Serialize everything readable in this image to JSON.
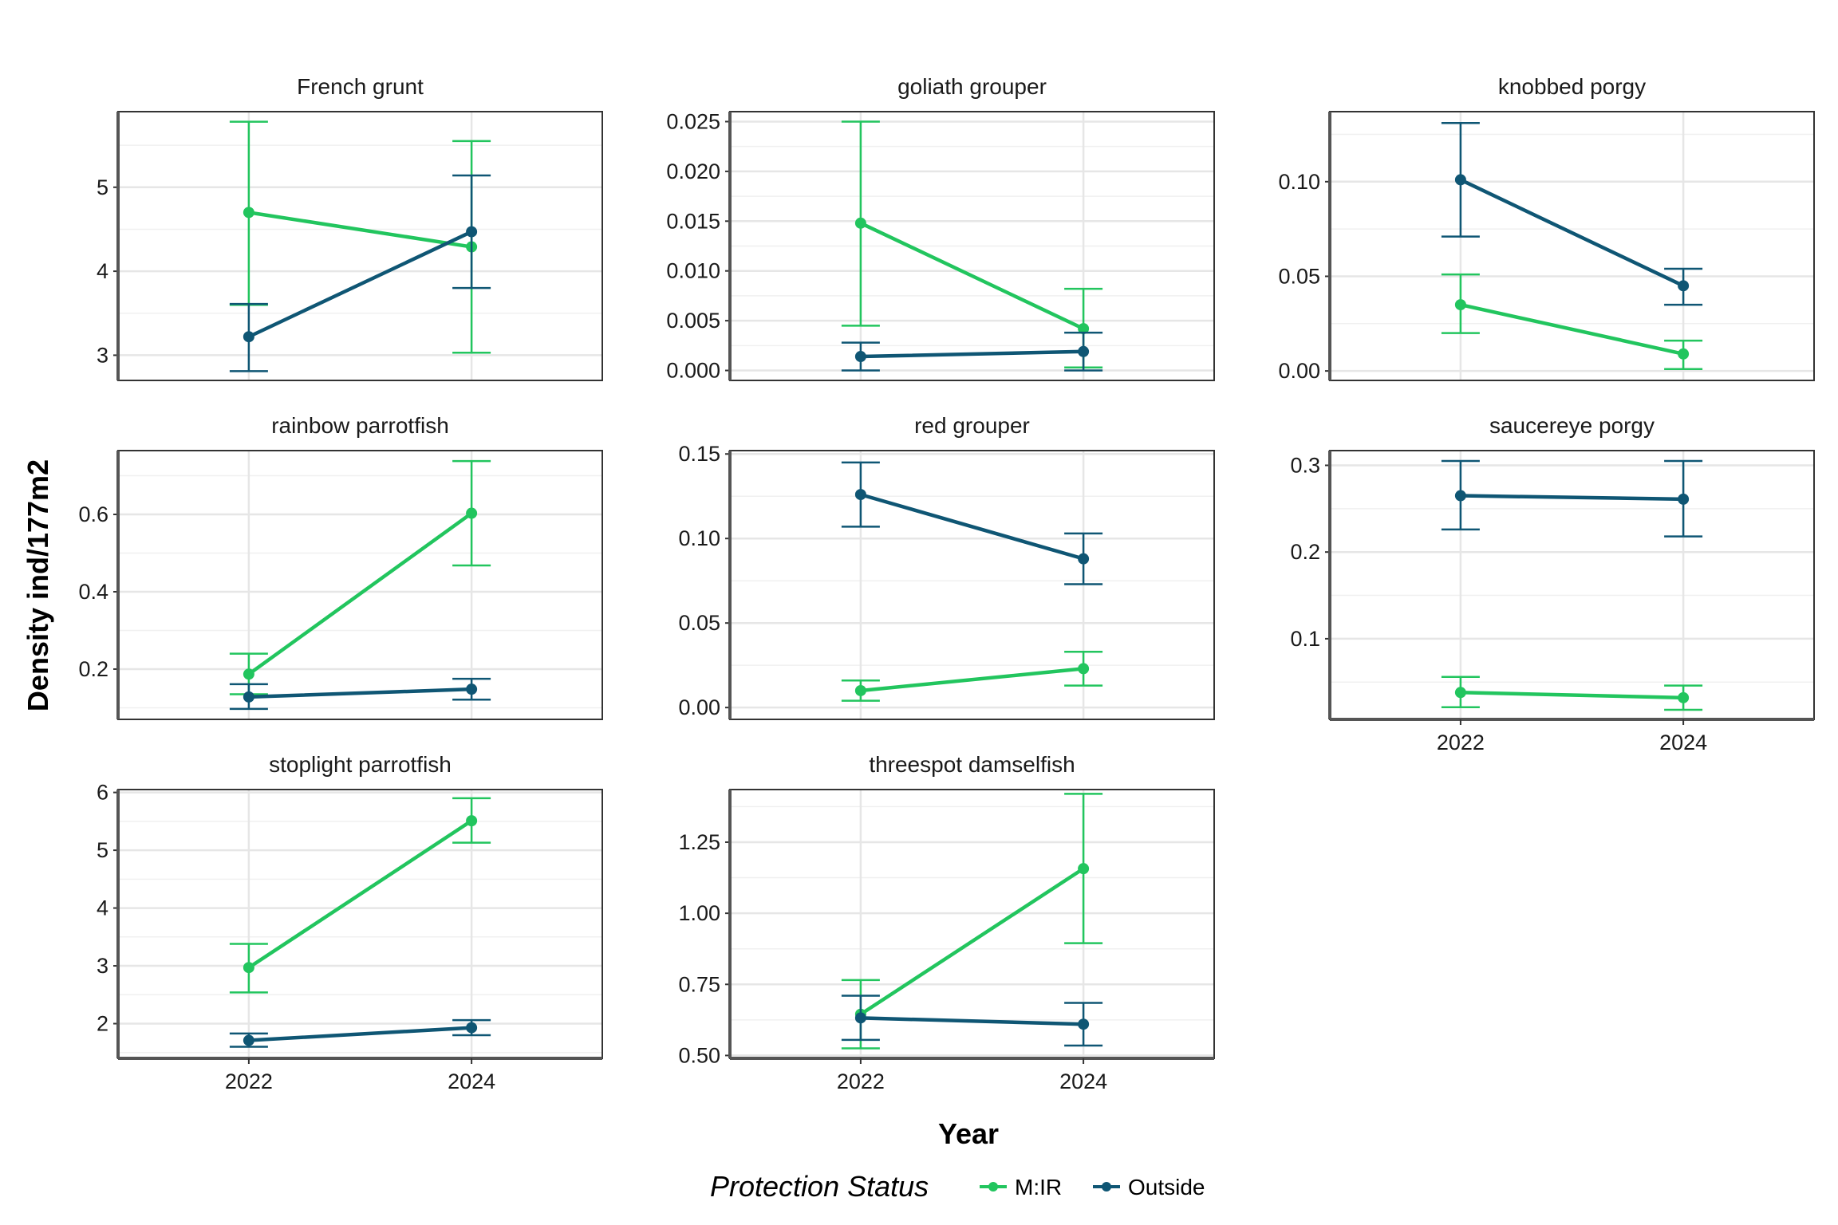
{
  "axes": {
    "xlabel": "Year",
    "ylabel": "Density ind/177m2"
  },
  "legend": {
    "title": "Protection Status",
    "items": [
      {
        "label": "M:IR",
        "color": "#22c55e"
      },
      {
        "label": "Outside",
        "color": "#0f5674"
      }
    ]
  },
  "chart_data": {
    "type": "line",
    "layout": "facet-wrap 3 columns, free y scales, error bars",
    "x_categories": [
      "2022",
      "2024"
    ],
    "xlabel": "Year",
    "ylabel": "Density ind/177m2",
    "legend_title": "Protection Status",
    "legend_placement": "bottom",
    "grid": true,
    "series_colors": {
      "M:IR": "#22c55e",
      "Outside": "#0f5674"
    },
    "panels": [
      {
        "title": "French grunt",
        "ylim": [
          2.7,
          5.9
        ],
        "yticks": [
          3,
          4,
          5
        ],
        "ytick_labels": [
          "3",
          "4",
          "5"
        ],
        "series": [
          {
            "name": "M:IR",
            "values": [
              4.7,
              4.29
            ],
            "lower": [
              3.6,
              3.03
            ],
            "upper": [
              5.78,
              5.55
            ]
          },
          {
            "name": "Outside",
            "values": [
              3.22,
              4.47
            ],
            "lower": [
              2.81,
              3.8
            ],
            "upper": [
              3.61,
              5.14
            ]
          }
        ]
      },
      {
        "title": "goliath grouper",
        "ylim": [
          -0.001,
          0.026
        ],
        "yticks": [
          0,
          0.005,
          0.01,
          0.015,
          0.02,
          0.025
        ],
        "ytick_labels": [
          "0.000",
          "0.005",
          "0.010",
          "0.015",
          "0.020",
          "0.025"
        ],
        "series": [
          {
            "name": "M:IR",
            "values": [
              0.0148,
              0.0042
            ],
            "lower": [
              0.0045,
              0.0003
            ],
            "upper": [
              0.025,
              0.0082
            ]
          },
          {
            "name": "Outside",
            "values": [
              0.0014,
              0.0019
            ],
            "lower": [
              0.0,
              0.0
            ],
            "upper": [
              0.0028,
              0.0038
            ]
          }
        ]
      },
      {
        "title": "knobbed porgy",
        "ylim": [
          -0.005,
          0.137
        ],
        "yticks": [
          0,
          0.05,
          0.1
        ],
        "ytick_labels": [
          "0.00",
          "0.05",
          "0.10"
        ],
        "series": [
          {
            "name": "M:IR",
            "values": [
              0.035,
              0.009
            ],
            "lower": [
              0.02,
              0.001
            ],
            "upper": [
              0.051,
              0.016
            ]
          },
          {
            "name": "Outside",
            "values": [
              0.101,
              0.045
            ],
            "lower": [
              0.071,
              0.035
            ],
            "upper": [
              0.131,
              0.054
            ]
          }
        ]
      },
      {
        "title": "rainbow parrotfish",
        "ylim": [
          0.07,
          0.765
        ],
        "yticks": [
          0.2,
          0.4,
          0.6
        ],
        "ytick_labels": [
          "0.2",
          "0.4",
          "0.6"
        ],
        "series": [
          {
            "name": "M:IR",
            "values": [
              0.187,
              0.603
            ],
            "lower": [
              0.135,
              0.468
            ],
            "upper": [
              0.24,
              0.738
            ]
          },
          {
            "name": "Outside",
            "values": [
              0.128,
              0.148
            ],
            "lower": [
              0.097,
              0.121
            ],
            "upper": [
              0.161,
              0.175
            ]
          }
        ]
      },
      {
        "title": "red grouper",
        "ylim": [
          -0.007,
          0.152
        ],
        "yticks": [
          0,
          0.05,
          0.1,
          0.15
        ],
        "ytick_labels": [
          "0.00",
          "0.05",
          "0.10",
          "0.15"
        ],
        "series": [
          {
            "name": "M:IR",
            "values": [
              0.01,
              0.023
            ],
            "lower": [
              0.004,
              0.013
            ],
            "upper": [
              0.016,
              0.033
            ]
          },
          {
            "name": "Outside",
            "values": [
              0.126,
              0.088
            ],
            "lower": [
              0.107,
              0.073
            ],
            "upper": [
              0.145,
              0.103
            ]
          }
        ]
      },
      {
        "title": "saucereye porgy",
        "ylim": [
          0.007,
          0.317
        ],
        "yticks": [
          0.1,
          0.2,
          0.3
        ],
        "ytick_labels": [
          "0.1",
          "0.2",
          "0.3"
        ],
        "series": [
          {
            "name": "M:IR",
            "values": [
              0.038,
              0.032
            ],
            "lower": [
              0.021,
              0.018
            ],
            "upper": [
              0.056,
              0.046
            ]
          },
          {
            "name": "Outside",
            "values": [
              0.265,
              0.261
            ],
            "lower": [
              0.226,
              0.218
            ],
            "upper": [
              0.305,
              0.305
            ]
          }
        ]
      },
      {
        "title": "stoplight parrotfish",
        "ylim": [
          1.4,
          6.05
        ],
        "yticks": [
          2,
          3,
          4,
          5,
          6
        ],
        "ytick_labels": [
          "2",
          "3",
          "4",
          "5",
          "6"
        ],
        "series": [
          {
            "name": "M:IR",
            "values": [
              2.97,
              5.51
            ],
            "lower": [
              2.54,
              5.13
            ],
            "upper": [
              3.38,
              5.9
            ]
          },
          {
            "name": "Outside",
            "values": [
              1.71,
              1.93
            ],
            "lower": [
              1.6,
              1.8
            ],
            "upper": [
              1.83,
              2.06
            ]
          }
        ]
      },
      {
        "title": "threespot damselfish",
        "ylim": [
          0.49,
          1.435
        ],
        "yticks": [
          0.5,
          0.75,
          1.0,
          1.25
        ],
        "ytick_labels": [
          "0.50",
          "0.75",
          "1.00",
          "1.25"
        ],
        "series": [
          {
            "name": "M:IR",
            "values": [
              0.645,
              1.157
            ],
            "lower": [
              0.525,
              0.895
            ],
            "upper": [
              0.765,
              1.42
            ]
          },
          {
            "name": "Outside",
            "values": [
              0.632,
              0.61
            ],
            "lower": [
              0.555,
              0.535
            ],
            "upper": [
              0.71,
              0.685
            ]
          }
        ]
      }
    ]
  }
}
